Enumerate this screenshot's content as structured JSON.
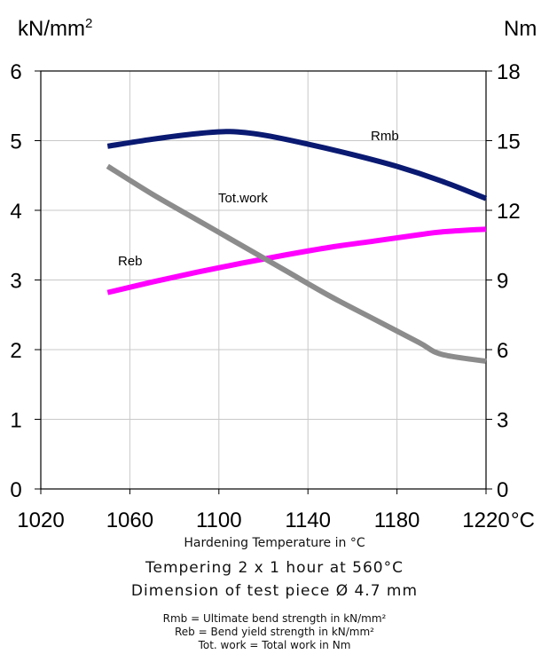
{
  "chart_data": {
    "type": "line",
    "left_axis_unit": "kN/mm2",
    "right_axis_unit": "Nm",
    "x_unit": "°C",
    "xlim": [
      1020,
      1220
    ],
    "x_ticks": [
      "1020",
      "1060",
      "1100",
      "1140",
      "1180",
      "1220"
    ],
    "ylim_left": [
      0,
      6
    ],
    "y_ticks_left": [
      "0",
      "1",
      "2",
      "3",
      "4",
      "5",
      "6"
    ],
    "ylim_right": [
      0,
      18
    ],
    "y_ticks_right": [
      "0",
      "3",
      "6",
      "9",
      "12",
      "15",
      "18"
    ],
    "grid": true,
    "series": [
      {
        "name": "Rmb",
        "axis": "left",
        "color": "#0a1a72",
        "x": [
          1050,
          1070,
          1090,
          1105,
          1120,
          1140,
          1160,
          1180,
          1200,
          1220
        ],
        "y": [
          4.92,
          5.02,
          5.1,
          5.13,
          5.08,
          4.95,
          4.8,
          4.63,
          4.42,
          4.17
        ]
      },
      {
        "name": "Reb",
        "axis": "left",
        "color": "#ff00ff",
        "x": [
          1050,
          1070,
          1090,
          1110,
          1130,
          1150,
          1170,
          1190,
          1200,
          1220
        ],
        "y": [
          2.82,
          2.97,
          3.11,
          3.24,
          3.36,
          3.47,
          3.56,
          3.65,
          3.69,
          3.73
        ]
      },
      {
        "name": "Tot.work",
        "axis": "right",
        "color": "#8c8c8c",
        "x": [
          1050,
          1070,
          1090,
          1110,
          1130,
          1150,
          1170,
          1190,
          1200,
          1220
        ],
        "y": [
          13.9,
          12.7,
          11.6,
          10.5,
          9.4,
          8.3,
          7.3,
          6.3,
          5.8,
          5.5
        ]
      }
    ]
  },
  "captions": {
    "x_axis": "Hardening Temperature in °C",
    "tempering": "Tempering 2 x 1 hour at 560°C",
    "dimension": "Dimension of test piece Ø 4.7 mm",
    "legend_rmb": "Rmb = Ultimate bend strength in kN/mm²",
    "legend_reb": "Reb =   Bend yield strength in kN/mm²",
    "legend_work": "Tot. work = Total work in Nm"
  }
}
